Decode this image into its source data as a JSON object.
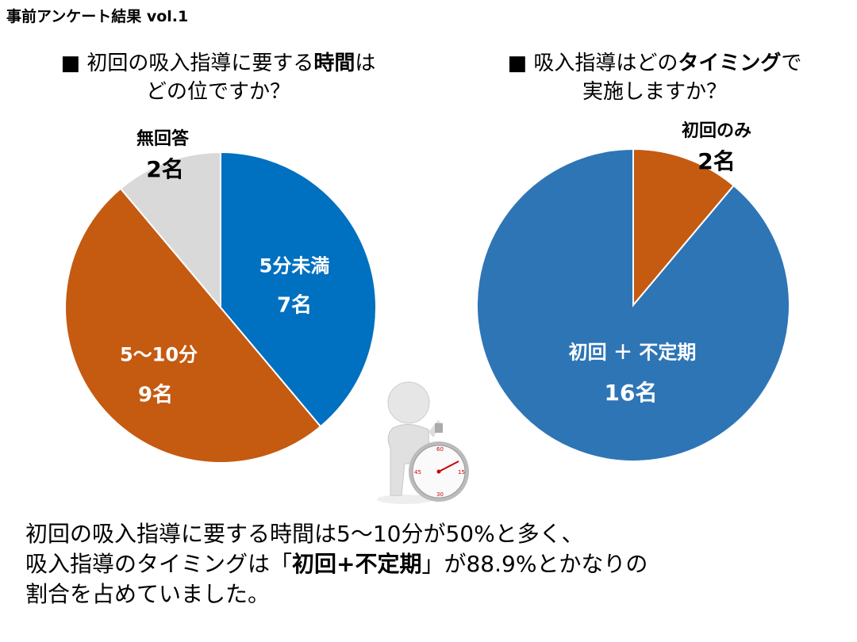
{
  "title": "事前アンケート結果 vol.1",
  "question1": {
    "bullet": "■",
    "pre": "初回の吸入指導に要する",
    "bold": "時間",
    "post": "は",
    "line2": "どの位ですか？"
  },
  "question2": {
    "bullet": "■",
    "pre": "吸入指導はどの",
    "bold": "タイミング",
    "post": "で",
    "line2": "実施しますか？"
  },
  "chart_data": [
    {
      "type": "pie",
      "title": "初回の吸入指導に要する時間はどの位ですか？",
      "unit": "名",
      "start": "top-clockwise",
      "slices": [
        {
          "label": "5分未満",
          "value": 7,
          "value_text": "7名",
          "color": "#0070C0"
        },
        {
          "label": "5～10分",
          "value": 9,
          "value_text": "9名",
          "color": "#C55A11"
        },
        {
          "label": "無回答",
          "value": 2,
          "value_text": "2名",
          "color": "#D9D9D9"
        }
      ]
    },
    {
      "type": "pie",
      "title": "吸入指導はどのタイミングで実施しますか？",
      "unit": "名",
      "start": "top-clockwise",
      "slices": [
        {
          "label": "初回のみ",
          "value": 2,
          "value_text": "2名",
          "color": "#C55A11"
        },
        {
          "label": "初回 ＋ 不定期",
          "value": 16,
          "value_text": "16名",
          "color": "#2E75B6"
        }
      ]
    }
  ],
  "summary": {
    "line1": "初回の吸入指導に要する時間は5～10分が50%と多く、",
    "line2_pre": "吸入指導のタイミングは「",
    "line2_bold": "初回+不定期",
    "line2_post": "」が88.9%とかなりの",
    "line3": "割合を占めていました。"
  }
}
